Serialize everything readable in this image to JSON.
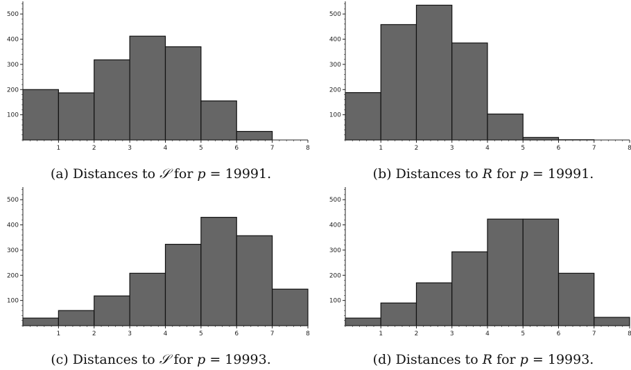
{
  "chart_data": [
    {
      "type": "bar",
      "x_bins": [
        [
          0,
          1
        ],
        [
          1,
          2
        ],
        [
          2,
          3
        ],
        [
          3,
          4
        ],
        [
          4,
          5
        ],
        [
          5,
          6
        ],
        [
          6,
          7
        ],
        [
          7,
          8
        ]
      ],
      "values": [
        200,
        187,
        318,
        412,
        370,
        155,
        34,
        0
      ],
      "xlim": [
        0,
        8
      ],
      "ylim": [
        0,
        550
      ],
      "xticks": [
        "1",
        "2",
        "3",
        "4",
        "5",
        "6",
        "7",
        "8"
      ],
      "yticks": [
        "100",
        "200",
        "300",
        "400",
        "500"
      ],
      "caption": {
        "prefix": "(a) Distances to ",
        "symbol": "𝒮",
        "middle": " for ",
        "var": "p",
        "suffix": " = 19991."
      }
    },
    {
      "type": "bar",
      "x_bins": [
        [
          0,
          1
        ],
        [
          1,
          2
        ],
        [
          2,
          3
        ],
        [
          3,
          4
        ],
        [
          4,
          5
        ],
        [
          5,
          6
        ],
        [
          6,
          7
        ],
        [
          7,
          8
        ]
      ],
      "values": [
        188,
        458,
        535,
        385,
        103,
        10,
        1,
        0
      ],
      "xlim": [
        0,
        8
      ],
      "ylim": [
        0,
        550
      ],
      "xticks": [
        "1",
        "2",
        "3",
        "4",
        "5",
        "6",
        "7",
        "8"
      ],
      "yticks": [
        "100",
        "200",
        "300",
        "400",
        "500"
      ],
      "caption": {
        "prefix": "(b) Distances to ",
        "symbol": "R",
        "middle": " for ",
        "var": "p",
        "suffix": " = 19991."
      }
    },
    {
      "type": "bar",
      "x_bins": [
        [
          0,
          1
        ],
        [
          1,
          2
        ],
        [
          2,
          3
        ],
        [
          3,
          4
        ],
        [
          4,
          5
        ],
        [
          5,
          6
        ],
        [
          6,
          7
        ],
        [
          7,
          8
        ]
      ],
      "values": [
        30,
        60,
        118,
        208,
        323,
        430,
        357,
        145
      ],
      "xlim": [
        0,
        8
      ],
      "ylim": [
        0,
        550
      ],
      "xticks": [
        "1",
        "2",
        "3",
        "4",
        "5",
        "6",
        "7",
        "8"
      ],
      "yticks": [
        "100",
        "200",
        "300",
        "400",
        "500"
      ],
      "caption": {
        "prefix": "(c) Distances to ",
        "symbol": "𝒮",
        "middle": " for ",
        "var": "p",
        "suffix": " = 19993."
      }
    },
    {
      "type": "bar",
      "x_bins": [
        [
          0,
          1
        ],
        [
          1,
          2
        ],
        [
          2,
          3
        ],
        [
          3,
          4
        ],
        [
          4,
          5
        ],
        [
          5,
          6
        ],
        [
          6,
          7
        ],
        [
          7,
          8
        ]
      ],
      "values": [
        30,
        90,
        170,
        293,
        423,
        423,
        208,
        33
      ],
      "xlim": [
        0,
        8
      ],
      "ylim": [
        0,
        550
      ],
      "xticks": [
        "1",
        "2",
        "3",
        "4",
        "5",
        "6",
        "7",
        "8"
      ],
      "yticks": [
        "100",
        "200",
        "300",
        "400",
        "500"
      ],
      "caption": {
        "prefix": "(d) Distances to ",
        "symbol": "R",
        "middle": " for ",
        "var": "p",
        "suffix": " = 19993."
      }
    }
  ]
}
